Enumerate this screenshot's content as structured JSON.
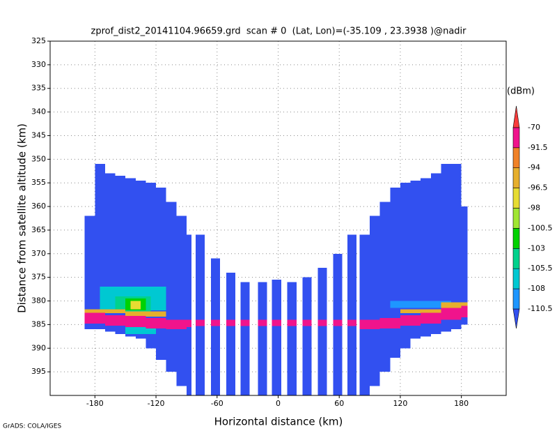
{
  "credit": "GrADS: COLA/IGES",
  "chart_data": {
    "type": "heatmap",
    "title": "zprof_dist2_20141104.96659.grd  scan # 0  (Lat, Lon)=(-35.109 , 23.3938 )@nadir",
    "x_label": "Horizontal distance (km)",
    "y_label": "Distance from satellite altitude (km)",
    "xlim": [
      -224,
      224
    ],
    "ylim": [
      400,
      325
    ],
    "xticks": [
      -180,
      -120,
      -60,
      0,
      60,
      120,
      180
    ],
    "yticks": [
      325,
      330,
      335,
      340,
      345,
      350,
      355,
      360,
      365,
      370,
      375,
      380,
      385,
      390,
      395
    ],
    "grid": true,
    "colorbar": {
      "label": "(dBm)",
      "levels": [
        -110.5,
        -108,
        -105.5,
        -103,
        -100.5,
        -98,
        -96.5,
        -94,
        -91.5,
        -70
      ],
      "colors": [
        "#3250f0",
        "#1e96ff",
        "#00c8d2",
        "#00d28c",
        "#00d200",
        "#a0e632",
        "#e6dc32",
        "#e6af2d",
        "#f08228",
        "#f0148c",
        "#fa3c3c"
      ]
    },
    "cells": [
      [
        -190,
        -180,
        362,
        386,
        -112
      ],
      [
        -180,
        -170,
        351,
        386,
        -112
      ],
      [
        -170,
        -160,
        353,
        386.5,
        -112
      ],
      [
        -160,
        -150,
        353.5,
        387,
        -112
      ],
      [
        -150,
        -140,
        354,
        387.5,
        -112
      ],
      [
        -140,
        -130,
        354.5,
        388,
        -112
      ],
      [
        -130,
        -120,
        355,
        390,
        -112
      ],
      [
        -120,
        -110,
        356,
        392.5,
        -112
      ],
      [
        -110,
        -100,
        359,
        395,
        -112
      ],
      [
        -100,
        -90,
        362,
        398,
        -112
      ],
      [
        -90,
        -85,
        366,
        400,
        -112
      ],
      [
        -81,
        -72,
        366,
        400,
        -112
      ],
      [
        -66,
        -57,
        371,
        400,
        -112
      ],
      [
        -51,
        -42,
        374,
        400,
        -112
      ],
      [
        -37,
        -28,
        376,
        400,
        -112
      ],
      [
        -20,
        -11,
        376,
        400,
        -112
      ],
      [
        -6,
        3,
        375.5,
        400,
        -112
      ],
      [
        9,
        18,
        376,
        400,
        -112
      ],
      [
        24,
        33,
        375,
        400,
        -112
      ],
      [
        39,
        48,
        373,
        400,
        -112
      ],
      [
        54,
        63,
        370,
        400,
        -112
      ],
      [
        68,
        77,
        366,
        400,
        -112
      ],
      [
        80,
        90,
        366,
        400,
        -112
      ],
      [
        90,
        100,
        362,
        398,
        -112
      ],
      [
        100,
        110,
        359,
        395,
        -112
      ],
      [
        110,
        120,
        356,
        392,
        -112
      ],
      [
        120,
        130,
        355,
        390,
        -112
      ],
      [
        130,
        140,
        354.5,
        388,
        -112
      ],
      [
        140,
        150,
        354,
        387.5,
        -112
      ],
      [
        150,
        160,
        353,
        387,
        -112
      ],
      [
        160,
        170,
        351,
        386.5,
        -112
      ],
      [
        170,
        180,
        351,
        386,
        -112
      ],
      [
        180,
        186,
        360,
        385,
        -112
      ],
      [
        -175,
        -110,
        377,
        382,
        -107
      ],
      [
        -160,
        -125,
        379,
        382.5,
        -104
      ],
      [
        -150,
        -130,
        379.5,
        382,
        -102
      ],
      [
        -145,
        -135,
        380,
        381.8,
        -97
      ],
      [
        -150,
        -120,
        385.5,
        387,
        -107
      ],
      [
        110,
        170,
        380,
        381.5,
        -109
      ],
      [
        -190,
        -150,
        381.8,
        382.6,
        -95
      ],
      [
        -150,
        -110,
        382.2,
        383.3,
        -95
      ],
      [
        120,
        160,
        381.8,
        382.6,
        -95
      ],
      [
        160,
        186,
        380.3,
        381.6,
        -95
      ],
      [
        -190,
        -170,
        382.5,
        384.8,
        -85
      ],
      [
        -170,
        -150,
        383,
        385.2,
        -85
      ],
      [
        -150,
        -130,
        383.2,
        385.5,
        -85
      ],
      [
        -130,
        -110,
        383.6,
        385.8,
        -85
      ],
      [
        -110,
        -90,
        384,
        386,
        -85
      ],
      [
        -90,
        -85,
        384,
        385.5,
        -85
      ],
      [
        -81,
        -72,
        384,
        385.3,
        -85
      ],
      [
        -66,
        -57,
        384,
        385.3,
        -85
      ],
      [
        -51,
        -42,
        384,
        385.3,
        -85
      ],
      [
        -37,
        -28,
        384,
        385.3,
        -85
      ],
      [
        -20,
        -11,
        384,
        385.3,
        -85
      ],
      [
        -6,
        3,
        384,
        385.3,
        -85
      ],
      [
        9,
        18,
        384,
        385.3,
        -85
      ],
      [
        24,
        33,
        384,
        385.3,
        -85
      ],
      [
        39,
        48,
        384,
        385.3,
        -85
      ],
      [
        54,
        63,
        384,
        385.3,
        -85
      ],
      [
        68,
        77,
        384,
        385.3,
        -85
      ],
      [
        80,
        100,
        384,
        386,
        -85
      ],
      [
        100,
        120,
        383.6,
        385.8,
        -85
      ],
      [
        120,
        140,
        383,
        385.2,
        -85
      ],
      [
        140,
        160,
        382.5,
        384.8,
        -85
      ],
      [
        160,
        180,
        381.5,
        384,
        -85
      ],
      [
        180,
        186,
        381,
        383.5,
        -85
      ]
    ]
  }
}
